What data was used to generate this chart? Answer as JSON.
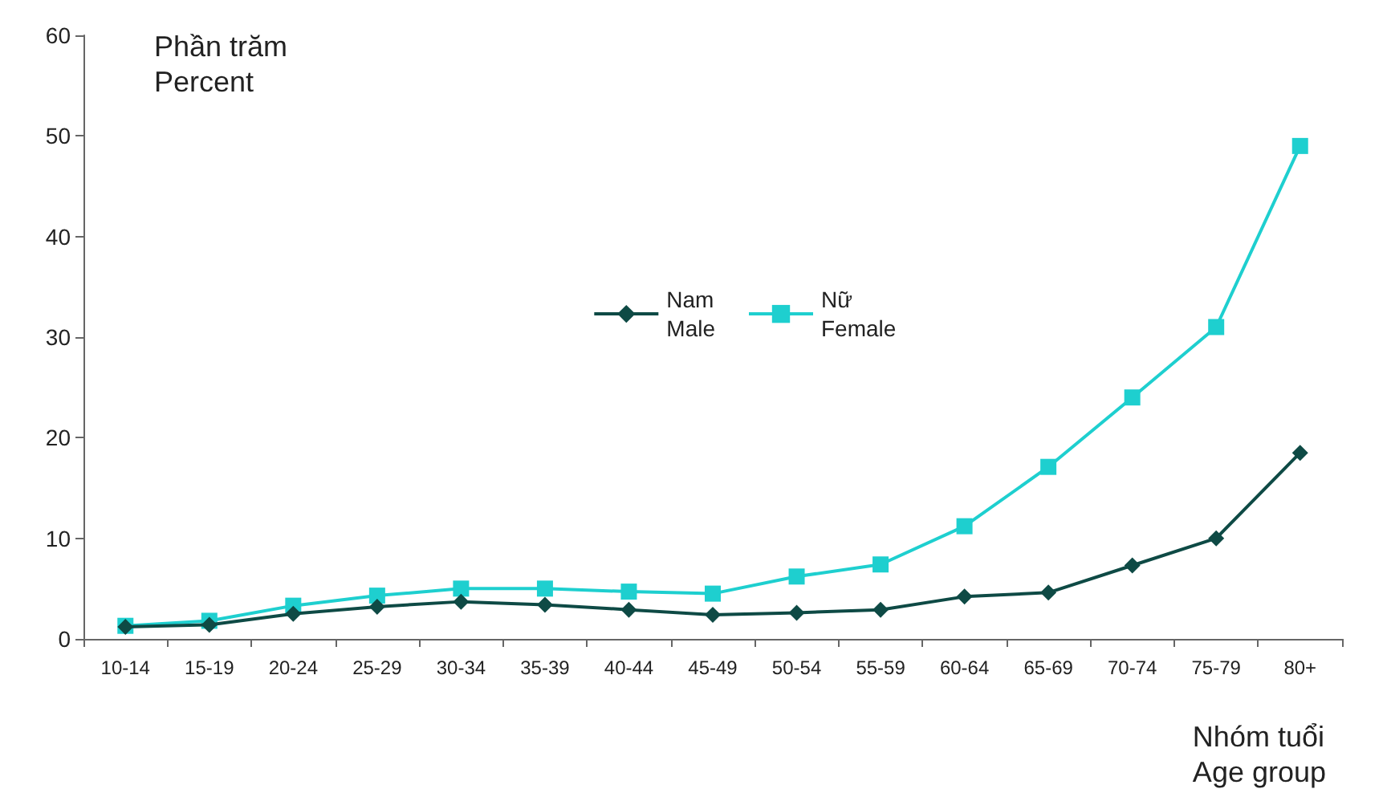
{
  "chart_data": {
    "type": "line",
    "ylabel": "Phần trăm\nPercent",
    "xlabel": "Nhóm tuổi\nAge group",
    "categories": [
      "10-14",
      "15-19",
      "20-24",
      "25-29",
      "30-34",
      "35-39",
      "40-44",
      "45-49",
      "50-54",
      "55-59",
      "60-64",
      "65-69",
      "70-74",
      "75-79",
      "80+"
    ],
    "series": [
      {
        "name": "Nam\nMale",
        "color": "#0e4a45",
        "marker": "diamond",
        "values": [
          1.2,
          1.4,
          2.5,
          3.2,
          3.7,
          3.4,
          2.9,
          2.4,
          2.6,
          2.9,
          4.2,
          4.6,
          7.3,
          10.0,
          18.5
        ]
      },
      {
        "name": "Nữ\nFemale",
        "color": "#1ecfcf",
        "marker": "square",
        "values": [
          1.3,
          1.8,
          3.3,
          4.3,
          5.0,
          5.0,
          4.7,
          4.5,
          6.2,
          7.4,
          11.2,
          17.1,
          24,
          31,
          49
        ]
      }
    ],
    "ylim": [
      0,
      60
    ],
    "yticks": [
      0,
      10,
      20,
      30,
      40,
      50,
      60
    ],
    "grid": false,
    "legend": "center"
  }
}
